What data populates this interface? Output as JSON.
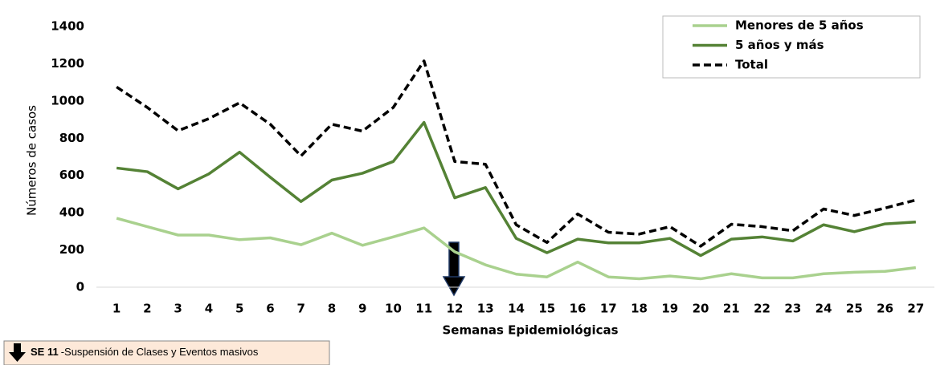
{
  "chart_data": {
    "type": "line",
    "x_label": "Semanas Epidemiológicas",
    "y_label": "Números de casos",
    "categories": [
      "1",
      "2",
      "3",
      "4",
      "5",
      "6",
      "7",
      "8",
      "9",
      "10",
      "11",
      "12",
      "13",
      "14",
      "15",
      "16",
      "17",
      "18",
      "19",
      "20",
      "21",
      "22",
      "23",
      "24",
      "25",
      "26",
      "27"
    ],
    "series": [
      {
        "name": "Menores de 5 años",
        "color": "#a9d18e",
        "dash": false,
        "values": [
          370,
          325,
          280,
          280,
          255,
          265,
          228,
          290,
          225,
          270,
          318,
          190,
          120,
          70,
          55,
          135,
          55,
          45,
          60,
          45,
          72,
          50,
          50,
          72,
          80,
          85,
          105
        ]
      },
      {
        "name": "5 años y más",
        "color": "#548235",
        "dash": false,
        "values": [
          640,
          620,
          528,
          608,
          725,
          590,
          460,
          575,
          612,
          675,
          885,
          480,
          535,
          262,
          185,
          258,
          238,
          238,
          262,
          170,
          258,
          270,
          248,
          335,
          298,
          340,
          350
        ]
      },
      {
        "name": "Total",
        "color": "#000000",
        "dash": true,
        "values": [
          1075,
          965,
          840,
          905,
          990,
          875,
          705,
          875,
          838,
          965,
          1215,
          675,
          660,
          335,
          240,
          393,
          295,
          285,
          325,
          220,
          338,
          325,
          303,
          420,
          385,
          425,
          468
        ]
      }
    ],
    "ylim": [
      0,
      1400
    ],
    "yticks": [
      0,
      200,
      400,
      600,
      800,
      1000,
      1200,
      1400
    ],
    "grid": false,
    "legend": "top-right",
    "annotation": {
      "label": "SE 11",
      "text": "-Suspensión de Clases  y Eventos masivos"
    }
  }
}
